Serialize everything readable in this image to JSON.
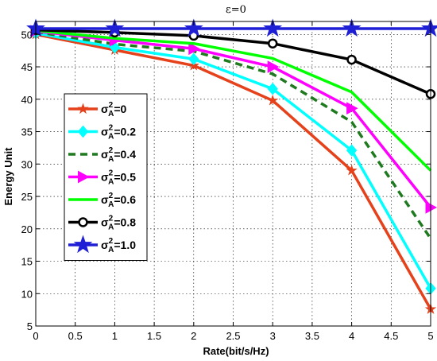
{
  "chart_data": {
    "type": "line",
    "title": "ε=0",
    "xlabel": "Rate(bit/s/Hz)",
    "ylabel": "Energy Unit",
    "xlim": [
      0,
      5
    ],
    "ylim": [
      5,
      52
    ],
    "xticks": [
      0,
      0.5,
      1,
      1.5,
      2,
      2.5,
      3,
      3.5,
      4,
      4.5,
      5
    ],
    "yticks": [
      5,
      10,
      15,
      20,
      25,
      30,
      35,
      40,
      45,
      50
    ],
    "xtick_labels": [
      "0",
      "0.5",
      "1",
      "1.5",
      "2",
      "2.5",
      "3",
      "3.5",
      "4",
      "4.5",
      "5"
    ],
    "ytick_labels": [
      "5",
      "10",
      "15",
      "20",
      "25",
      "30",
      "35",
      "40",
      "45",
      "50"
    ],
    "grid": true,
    "legend_position": "left",
    "x": [
      0,
      1,
      2,
      3,
      4,
      5
    ],
    "series": [
      {
        "name_base": "σ",
        "name_sup": "2",
        "name_sub": "A",
        "name_value": "=0",
        "color": "#e5411b",
        "line_style": "solid",
        "marker": "star-small",
        "values": [
          50.0,
          47.6,
          45.2,
          39.8,
          29.0,
          7.6
        ]
      },
      {
        "name_base": "σ",
        "name_sup": "2",
        "name_sub": "A",
        "name_value": "=0.2",
        "color": "#00ffff",
        "line_style": "solid",
        "marker": "diamond",
        "values": [
          50.2,
          48.0,
          46.2,
          41.6,
          32.1,
          10.8
        ]
      },
      {
        "name_base": "σ",
        "name_sup": "2",
        "name_sub": "A",
        "name_value": "=0.4",
        "color": "#1f7a1f",
        "line_style": "dashed",
        "marker": "none",
        "values": [
          50.4,
          48.5,
          47.4,
          43.9,
          36.5,
          18.5
        ]
      },
      {
        "name_base": "σ",
        "name_sup": "2",
        "name_sub": "A",
        "name_value": "=0.5",
        "color": "#ff00ff",
        "line_style": "solid",
        "marker": "triangle-right",
        "values": [
          50.5,
          49.1,
          47.8,
          45.0,
          38.6,
          23.3
        ]
      },
      {
        "name_base": "σ",
        "name_sup": "2",
        "name_sub": "A",
        "name_value": "=0.6",
        "color": "#00ff00",
        "line_style": "solid",
        "marker": "none",
        "values": [
          50.6,
          49.4,
          48.6,
          46.3,
          41.1,
          29.0
        ]
      },
      {
        "name_base": "σ",
        "name_sup": "2",
        "name_sub": "A",
        "name_value": "=0.8",
        "color": "#000000",
        "line_style": "solid",
        "marker": "circle",
        "values": [
          50.7,
          50.3,
          49.8,
          48.6,
          46.1,
          40.8
        ]
      },
      {
        "name_base": "σ",
        "name_sup": "2",
        "name_sub": "A",
        "name_value": "=1.0",
        "color": "#1f1fd6",
        "line_style": "solid",
        "marker": "star",
        "values": [
          50.9,
          50.9,
          50.9,
          50.9,
          50.9,
          50.9
        ]
      }
    ]
  }
}
